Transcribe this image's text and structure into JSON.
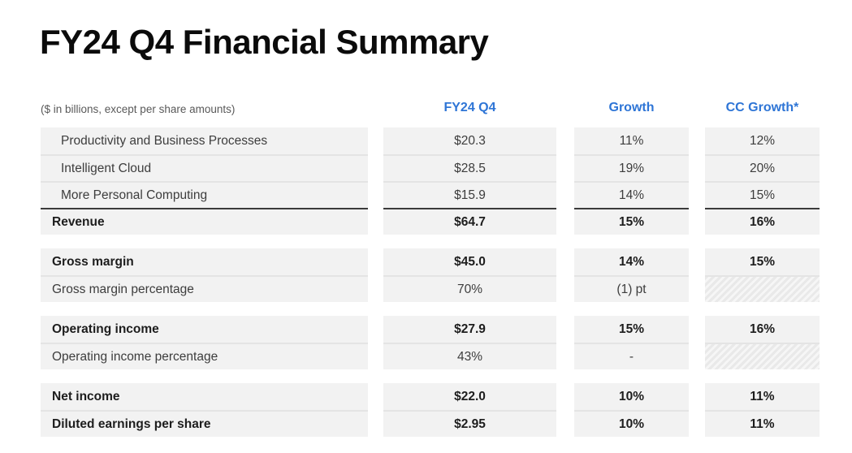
{
  "title": "FY24 Q4 Financial Summary",
  "table": {
    "note": "($ in billions, except per share amounts)",
    "columns": [
      {
        "label": "FY24 Q4"
      },
      {
        "label": "Growth"
      },
      {
        "label": "CC Growth*"
      }
    ],
    "groups": [
      {
        "rows": [
          {
            "label": "Productivity and Business Processes",
            "values": [
              "$20.3",
              "11%",
              "12%"
            ],
            "bold": false,
            "indent": true
          },
          {
            "label": "Intelligent Cloud",
            "values": [
              "$28.5",
              "19%",
              "20%"
            ],
            "bold": false,
            "indent": true
          },
          {
            "label": "More Personal Computing",
            "values": [
              "$15.9",
              "14%",
              "15%"
            ],
            "bold": false,
            "indent": true
          },
          {
            "label": "Revenue",
            "values": [
              "$64.7",
              "15%",
              "16%"
            ],
            "bold": true,
            "total_rule": true
          }
        ]
      },
      {
        "rows": [
          {
            "label": "Gross margin",
            "values": [
              "$45.0",
              "14%",
              "15%"
            ],
            "bold": true
          },
          {
            "label": "Gross margin percentage",
            "values": [
              "70%",
              "(1) pt",
              null
            ],
            "bold": false
          }
        ]
      },
      {
        "rows": [
          {
            "label": "Operating income",
            "values": [
              "$27.9",
              "15%",
              "16%"
            ],
            "bold": true
          },
          {
            "label": "Operating income percentage",
            "values": [
              "43%",
              "-",
              null
            ],
            "bold": false
          }
        ]
      },
      {
        "rows": [
          {
            "label": "Net income",
            "values": [
              "$22.0",
              "10%",
              "11%"
            ],
            "bold": true
          },
          {
            "label": "Diluted earnings per share",
            "values": [
              "$2.95",
              "10%",
              "11%"
            ],
            "bold": true
          }
        ]
      }
    ]
  },
  "colors": {
    "accent_blue": "#2e75d6",
    "row_fill": "#f2f2f2",
    "row_separator": "#e4e4e4",
    "total_rule": "#3b3b3b",
    "note_gray": "#595959"
  }
}
